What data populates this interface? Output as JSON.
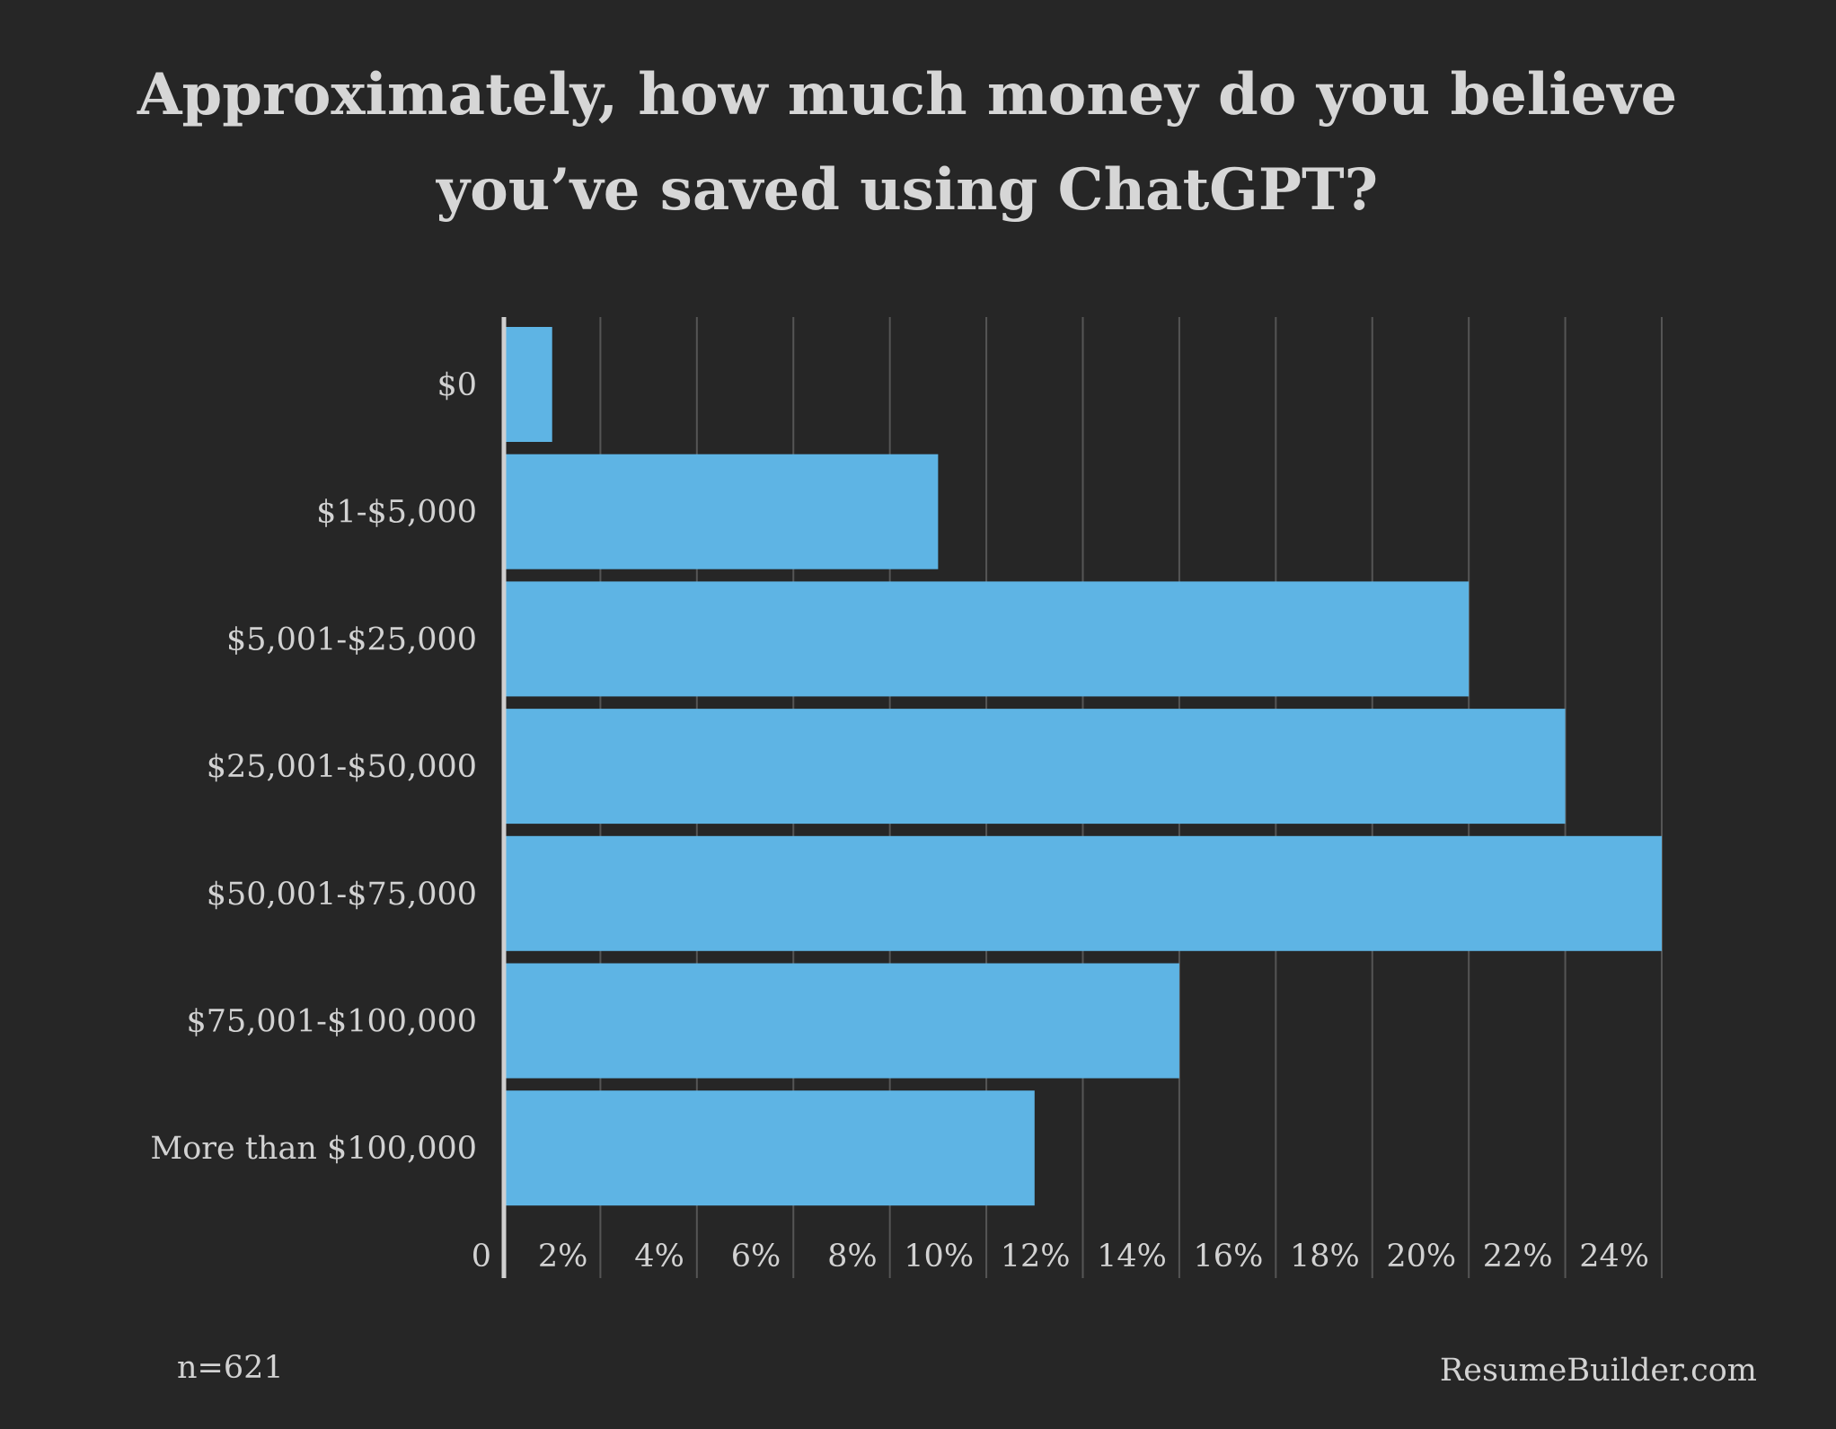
{
  "chart_data": {
    "type": "bar",
    "orientation": "horizontal",
    "title": "Approximately, how much money do you believe you’ve saved using ChatGPT?",
    "title_lines": [
      "Approximately, how much money do you believe",
      "you’ve saved using ChatGPT?"
    ],
    "categories": [
      "$0",
      "$1-$5,000",
      "$5,001-$25,000",
      "$25,001-$50,000",
      "$50,001-$75,000",
      "$75,001-$100,000",
      "More than $100,000"
    ],
    "values": [
      1,
      9,
      20,
      22,
      24,
      14,
      11
    ],
    "xlim": [
      0,
      24
    ],
    "x_ticks": [
      0,
      2,
      4,
      6,
      8,
      10,
      12,
      14,
      16,
      18,
      20,
      22,
      24
    ],
    "x_tick_labels": [
      "0",
      "2%",
      "4%",
      "6%",
      "8%",
      "10%",
      "12%",
      "14%",
      "16%",
      "18%",
      "20%",
      "22%",
      "24%"
    ],
    "xlabel": "",
    "ylabel": "",
    "grid": true,
    "legend": "none",
    "bar_color": "#5eb4e4",
    "grid_color": "#555555",
    "axis_color": "#cfcfcf",
    "background_color": "#262626"
  },
  "footer": {
    "sample_size": "n=621",
    "source": "ResumeBuilder.com"
  }
}
